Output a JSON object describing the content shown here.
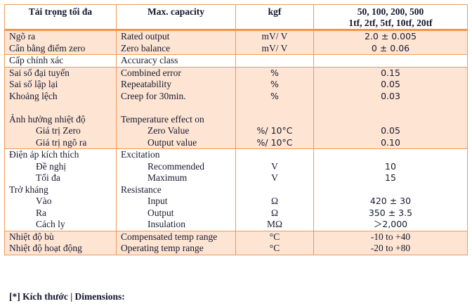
{
  "table": {
    "headers": {
      "vi": "Tải trọng tối đa",
      "en": "Max. capacity",
      "unit": "kgf",
      "capacity_line1": "50, 100, 200, 500",
      "capacity_line2": "1tf, 2tf, 5tf, 10tf, 20tf"
    },
    "groups": [
      {
        "rows": [
          {
            "vi": "Ngõ ra",
            "en": "Rated output",
            "unit": "mV/ V",
            "value": "2.0 ± 0.005"
          },
          {
            "vi": "Cân bằng điểm zero",
            "en": "Zero balance",
            "unit": "mV/ V",
            "value": "0 ± 0.06"
          }
        ]
      },
      {
        "rows": [
          {
            "vi": "Cấp chính xác",
            "en": "Accuracy class",
            "unit": "",
            "value": ""
          }
        ]
      },
      {
        "rows": [
          {
            "vi": "Sai số đại tuyến",
            "en": "Combined error",
            "unit": "%",
            "value": "0.15"
          },
          {
            "vi": "Sai số lập lại",
            "en": "Repeatability",
            "unit": "%",
            "value": "0.05"
          },
          {
            "vi": "Khoảng lệch",
            "en": "Creep for 30min.",
            "unit": "%",
            "value": "0.03"
          },
          {
            "vi": "Ảnh hưởng nhiệt độ",
            "en": "Temperature effect on",
            "unit": "",
            "value": ""
          },
          {
            "vi": "Giá trị Zero",
            "en": "Zero Value",
            "unit": "%/ 10°C",
            "value": "0.05"
          },
          {
            "vi": "Giá trị ngõ ra",
            "en": "Output value",
            "unit": "%/ 10°C",
            "value": "0.10"
          }
        ]
      },
      {
        "rows": [
          {
            "vi": "Điện áp kích thích",
            "en": "Excitation",
            "unit": "",
            "value": ""
          },
          {
            "vi": "Đề nghị",
            "en": "Recommended",
            "unit": "V",
            "value": "10"
          },
          {
            "vi": "Tối đa",
            "en": "Maximum",
            "unit": "V",
            "value": "15"
          },
          {
            "vi": "Trở kháng",
            "en": "Resistance",
            "unit": "",
            "value": ""
          },
          {
            "vi": "Vào",
            "en": "Input",
            "unit": "Ω",
            "value": "420 ± 30"
          },
          {
            "vi": "Ra",
            "en": "Output",
            "unit": "Ω",
            "value": "350 ± 3.5"
          },
          {
            "vi": "Cách ly",
            "en": "Insulation",
            "unit": "MΩ",
            "value": "＞2,000"
          }
        ]
      },
      {
        "rows": [
          {
            "vi": "Nhiệt độ bù",
            "en": "Compensated temp range",
            "unit": "°C",
            "value": "-10 to +40"
          },
          {
            "vi": "Nhiệt độ hoạt động",
            "en": "Operating temp range",
            "unit": "°C",
            "value": "-20 to +80"
          }
        ]
      }
    ]
  },
  "footer": {
    "dimensions_label": "[*] Kích thước | Dimensions:"
  },
  "colors": {
    "border": "#f09a56",
    "tint": "#fde4d3",
    "text": "#1a1a2e"
  }
}
